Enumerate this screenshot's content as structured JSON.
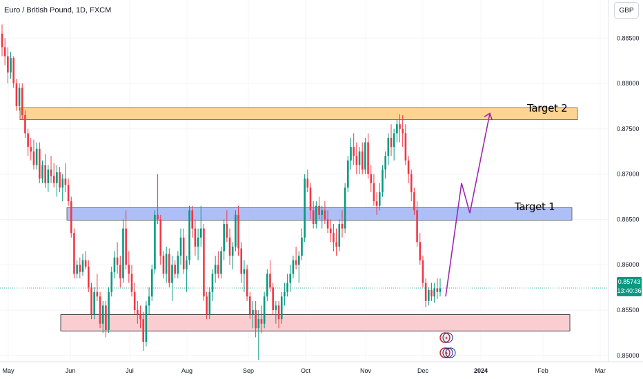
{
  "header": {
    "title": "Euro / British Pound, 1D, FXCM",
    "currency": "GBP"
  },
  "price_tag": {
    "price": "0.85743",
    "countdown": "13:40:36",
    "color": "#089981"
  },
  "colors": {
    "up": "#089981",
    "down": "#f23645",
    "target2_zone": "#ffcc80",
    "target1_zone": "#9fb4f5",
    "support_zone": "#f9c5c9",
    "projection": "#9c27b0"
  },
  "zones": {
    "target2_label": "Target 2",
    "target1_label": "Target 1"
  },
  "chart_data": {
    "type": "candlestick",
    "title": "Euro / British Pound, 1D, FXCM",
    "y_ticks": [
      "0.88500",
      "0.88000",
      "0.87500",
      "0.87000",
      "0.86500",
      "0.86000",
      "0.85500",
      "0.85000"
    ],
    "x_ticks": [
      "May",
      "Jun",
      "Jul",
      "Aug",
      "Sep",
      "Oct",
      "Nov",
      "Dec",
      "2024",
      "Feb",
      "Mar"
    ],
    "ylim": [
      0.8493,
      0.8892
    ],
    "zones": [
      {
        "label": "Target 2",
        "top": 0.8773,
        "bottom": 0.876
      },
      {
        "label": "Target 1",
        "top": 0.8663,
        "bottom": 0.8649
      },
      {
        "label": "",
        "top": 0.8545,
        "bottom": 0.8527
      }
    ],
    "projection_path_prices": [
      0.8565,
      0.869,
      0.8657,
      0.8767
    ],
    "last_price": 0.85743,
    "candles": [
      [
        0.8855,
        0.8865,
        0.883,
        0.884
      ],
      [
        0.884,
        0.885,
        0.882,
        0.883
      ],
      [
        0.883,
        0.884,
        0.88,
        0.8812
      ],
      [
        0.8812,
        0.8835,
        0.8805,
        0.8828
      ],
      [
        0.8828,
        0.883,
        0.8795,
        0.88
      ],
      [
        0.88,
        0.8805,
        0.877,
        0.8775
      ],
      [
        0.8775,
        0.88,
        0.877,
        0.8795
      ],
      [
        0.8795,
        0.88,
        0.876,
        0.8765
      ],
      [
        0.8765,
        0.877,
        0.874,
        0.8745
      ],
      [
        0.8745,
        0.875,
        0.872,
        0.873
      ],
      [
        0.873,
        0.874,
        0.8715,
        0.8725
      ],
      [
        0.8725,
        0.8738,
        0.8705,
        0.871
      ],
      [
        0.871,
        0.8735,
        0.8705,
        0.8728
      ],
      [
        0.8728,
        0.8735,
        0.869,
        0.8695
      ],
      [
        0.8695,
        0.8715,
        0.869,
        0.871
      ],
      [
        0.871,
        0.8722,
        0.8685,
        0.869
      ],
      [
        0.869,
        0.871,
        0.868,
        0.8705
      ],
      [
        0.8705,
        0.872,
        0.869,
        0.8698
      ],
      [
        0.8698,
        0.8712,
        0.8685,
        0.869
      ],
      [
        0.869,
        0.871,
        0.8675,
        0.8702
      ],
      [
        0.8702,
        0.8708,
        0.868,
        0.8685
      ],
      [
        0.8685,
        0.87,
        0.867,
        0.8695
      ],
      [
        0.8695,
        0.8712,
        0.868,
        0.8688
      ],
      [
        0.8688,
        0.8695,
        0.8665,
        0.867
      ],
      [
        0.867,
        0.8675,
        0.863,
        0.8635
      ],
      [
        0.8635,
        0.864,
        0.8585,
        0.859
      ],
      [
        0.859,
        0.8605,
        0.8585,
        0.86
      ],
      [
        0.86,
        0.8608,
        0.8585,
        0.8592
      ],
      [
        0.8592,
        0.8612,
        0.8588,
        0.8605
      ],
      [
        0.8605,
        0.8615,
        0.8595,
        0.8598
      ],
      [
        0.8598,
        0.8605,
        0.857,
        0.8575
      ],
      [
        0.8575,
        0.858,
        0.854,
        0.8545
      ],
      [
        0.8545,
        0.8575,
        0.854,
        0.857
      ],
      [
        0.857,
        0.859,
        0.856,
        0.8565
      ],
      [
        0.8565,
        0.857,
        0.853,
        0.8535
      ],
      [
        0.8535,
        0.856,
        0.8525,
        0.8555
      ],
      [
        0.8555,
        0.856,
        0.852,
        0.8528
      ],
      [
        0.8528,
        0.8575,
        0.8525,
        0.857
      ],
      [
        0.857,
        0.8598,
        0.8565,
        0.8592
      ],
      [
        0.8592,
        0.8615,
        0.8585,
        0.8608
      ],
      [
        0.8608,
        0.8625,
        0.859,
        0.86
      ],
      [
        0.86,
        0.861,
        0.8575,
        0.8585
      ],
      [
        0.8585,
        0.865,
        0.858,
        0.864
      ],
      [
        0.864,
        0.866,
        0.8595,
        0.86
      ],
      [
        0.86,
        0.8615,
        0.858,
        0.859
      ],
      [
        0.859,
        0.86,
        0.8565,
        0.857
      ],
      [
        0.857,
        0.858,
        0.8545,
        0.855
      ],
      [
        0.855,
        0.856,
        0.8535,
        0.8545
      ],
      [
        0.8545,
        0.8555,
        0.853,
        0.854
      ],
      [
        0.854,
        0.8548,
        0.8505,
        0.8515
      ],
      [
        0.8515,
        0.856,
        0.851,
        0.8555
      ],
      [
        0.8555,
        0.8575,
        0.8545,
        0.8565
      ],
      [
        0.8565,
        0.86,
        0.856,
        0.8595
      ],
      [
        0.8595,
        0.866,
        0.859,
        0.8655
      ],
      [
        0.8655,
        0.87,
        0.8645,
        0.865
      ],
      [
        0.865,
        0.8655,
        0.86,
        0.861
      ],
      [
        0.861,
        0.8615,
        0.8585,
        0.859
      ],
      [
        0.859,
        0.862,
        0.858,
        0.8612
      ],
      [
        0.8612,
        0.8618,
        0.8575,
        0.858
      ],
      [
        0.858,
        0.861,
        0.856,
        0.86
      ],
      [
        0.86,
        0.8605,
        0.8585,
        0.859
      ],
      [
        0.859,
        0.8615,
        0.8585,
        0.861
      ],
      [
        0.861,
        0.864,
        0.86,
        0.863
      ],
      [
        0.863,
        0.864,
        0.859,
        0.8595
      ],
      [
        0.8595,
        0.861,
        0.857,
        0.8605
      ],
      [
        0.8605,
        0.8665,
        0.86,
        0.866
      ],
      [
        0.866,
        0.8665,
        0.863,
        0.864
      ],
      [
        0.864,
        0.865,
        0.861,
        0.862
      ],
      [
        0.862,
        0.864,
        0.8605,
        0.863
      ],
      [
        0.863,
        0.8665,
        0.862,
        0.864
      ],
      [
        0.864,
        0.8645,
        0.856,
        0.8565
      ],
      [
        0.8565,
        0.857,
        0.854,
        0.8545
      ],
      [
        0.8545,
        0.8575,
        0.854,
        0.857
      ],
      [
        0.857,
        0.8595,
        0.856,
        0.859
      ],
      [
        0.859,
        0.861,
        0.858,
        0.86
      ],
      [
        0.86,
        0.8615,
        0.8585,
        0.859
      ],
      [
        0.859,
        0.862,
        0.8585,
        0.8615
      ],
      [
        0.8615,
        0.865,
        0.8605,
        0.8645
      ],
      [
        0.8645,
        0.866,
        0.8625,
        0.863
      ],
      [
        0.863,
        0.864,
        0.86,
        0.861
      ],
      [
        0.861,
        0.8625,
        0.8595,
        0.862
      ],
      [
        0.862,
        0.866,
        0.8615,
        0.8655
      ],
      [
        0.8655,
        0.8665,
        0.861,
        0.8618
      ],
      [
        0.8618,
        0.8625,
        0.858,
        0.859
      ],
      [
        0.859,
        0.8605,
        0.857,
        0.8595
      ],
      [
        0.8595,
        0.86,
        0.856,
        0.8565
      ],
      [
        0.8565,
        0.857,
        0.854,
        0.8545
      ],
      [
        0.8545,
        0.856,
        0.853,
        0.855
      ],
      [
        0.855,
        0.856,
        0.852,
        0.853
      ],
      [
        0.853,
        0.855,
        0.8495,
        0.854
      ],
      [
        0.854,
        0.8555,
        0.8525,
        0.8535
      ],
      [
        0.8535,
        0.857,
        0.853,
        0.8565
      ],
      [
        0.8565,
        0.8595,
        0.856,
        0.859
      ],
      [
        0.859,
        0.8605,
        0.857,
        0.8575
      ],
      [
        0.8575,
        0.858,
        0.8545,
        0.855
      ],
      [
        0.855,
        0.856,
        0.8535,
        0.8555
      ],
      [
        0.8555,
        0.856,
        0.853,
        0.854
      ],
      [
        0.854,
        0.857,
        0.8535,
        0.8565
      ],
      [
        0.8565,
        0.858,
        0.8555,
        0.857
      ],
      [
        0.857,
        0.859,
        0.8565,
        0.858
      ],
      [
        0.858,
        0.86,
        0.857,
        0.859
      ],
      [
        0.859,
        0.861,
        0.8585,
        0.8605
      ],
      [
        0.8605,
        0.862,
        0.8595,
        0.86
      ],
      [
        0.86,
        0.8615,
        0.858,
        0.861
      ],
      [
        0.861,
        0.864,
        0.8605,
        0.863
      ],
      [
        0.863,
        0.87,
        0.8625,
        0.8695
      ],
      [
        0.8695,
        0.8705,
        0.868,
        0.8685
      ],
      [
        0.8685,
        0.869,
        0.865,
        0.866
      ],
      [
        0.866,
        0.867,
        0.864,
        0.8645
      ],
      [
        0.8645,
        0.867,
        0.864,
        0.8665
      ],
      [
        0.8665,
        0.8675,
        0.865,
        0.8655
      ],
      [
        0.8655,
        0.8665,
        0.864,
        0.866
      ],
      [
        0.866,
        0.867,
        0.8645,
        0.865
      ],
      [
        0.865,
        0.866,
        0.8635,
        0.864
      ],
      [
        0.864,
        0.865,
        0.8625,
        0.8635
      ],
      [
        0.8635,
        0.8645,
        0.8615,
        0.8625
      ],
      [
        0.8625,
        0.864,
        0.861,
        0.862
      ],
      [
        0.862,
        0.865,
        0.8615,
        0.8645
      ],
      [
        0.8645,
        0.866,
        0.863,
        0.864
      ],
      [
        0.864,
        0.869,
        0.8635,
        0.8685
      ],
      [
        0.8685,
        0.872,
        0.868,
        0.8715
      ],
      [
        0.8715,
        0.874,
        0.8705,
        0.873
      ],
      [
        0.873,
        0.8745,
        0.871,
        0.872
      ],
      [
        0.872,
        0.8735,
        0.87,
        0.871
      ],
      [
        0.871,
        0.873,
        0.87,
        0.8725
      ],
      [
        0.8725,
        0.8735,
        0.87,
        0.8705
      ],
      [
        0.8705,
        0.874,
        0.87,
        0.8735
      ],
      [
        0.8735,
        0.8745,
        0.8695,
        0.87
      ],
      [
        0.87,
        0.871,
        0.868,
        0.869
      ],
      [
        0.869,
        0.87,
        0.8665,
        0.867
      ],
      [
        0.867,
        0.868,
        0.8655,
        0.8665
      ],
      [
        0.8665,
        0.869,
        0.866,
        0.868
      ],
      [
        0.868,
        0.871,
        0.8675,
        0.8705
      ],
      [
        0.8705,
        0.8725,
        0.8695,
        0.872
      ],
      [
        0.872,
        0.8745,
        0.871,
        0.874
      ],
      [
        0.874,
        0.8755,
        0.872,
        0.873
      ],
      [
        0.873,
        0.875,
        0.8715,
        0.8745
      ],
      [
        0.8745,
        0.876,
        0.8735,
        0.8755
      ],
      [
        0.8755,
        0.8766,
        0.8735,
        0.875
      ],
      [
        0.875,
        0.8765,
        0.873,
        0.8745
      ],
      [
        0.8745,
        0.8755,
        0.871,
        0.8715
      ],
      [
        0.8715,
        0.872,
        0.869,
        0.87
      ],
      [
        0.87,
        0.8705,
        0.867,
        0.868
      ],
      [
        0.868,
        0.8685,
        0.8655,
        0.866
      ],
      [
        0.866,
        0.867,
        0.862,
        0.8625
      ],
      [
        0.8625,
        0.8635,
        0.86,
        0.8605
      ],
      [
        0.8605,
        0.861,
        0.8575,
        0.858
      ],
      [
        0.858,
        0.8585,
        0.8553,
        0.856
      ],
      [
        0.856,
        0.8575,
        0.8555,
        0.8572
      ],
      [
        0.8572,
        0.858,
        0.856,
        0.8565
      ],
      [
        0.8565,
        0.858,
        0.8558,
        0.8574
      ],
      [
        0.8574,
        0.8585,
        0.8562,
        0.857
      ],
      [
        0.857,
        0.8585,
        0.8565,
        0.8574
      ]
    ]
  }
}
